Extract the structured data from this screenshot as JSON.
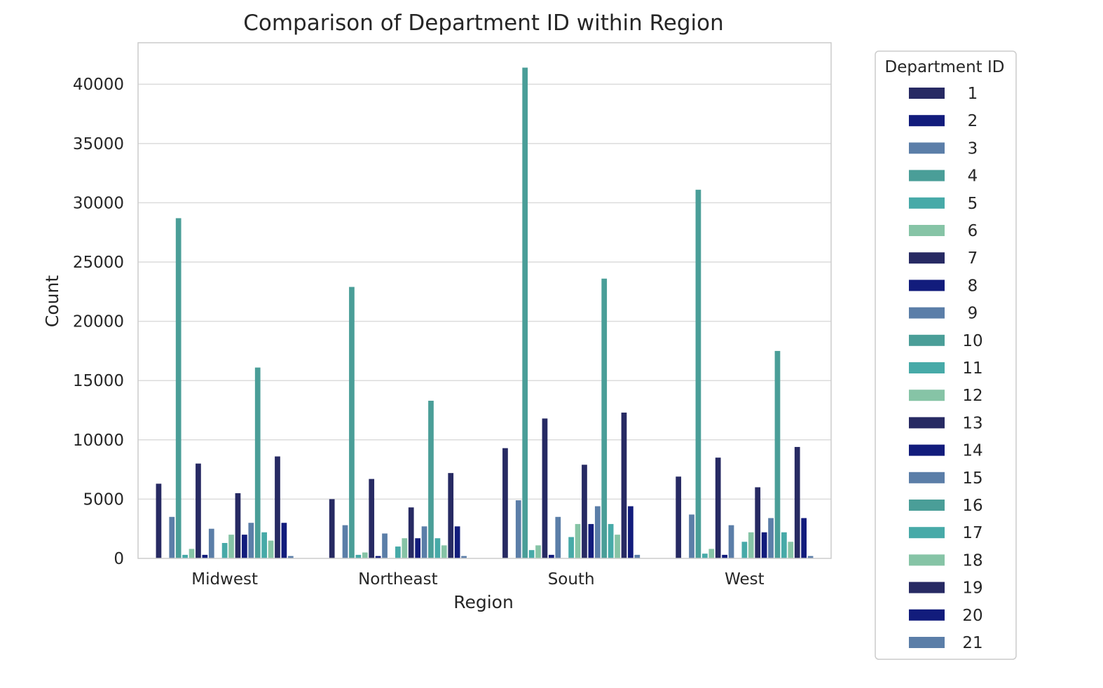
{
  "chart_data": {
    "type": "bar",
    "title": "Comparison of Department ID within Region",
    "xlabel": "Region",
    "ylabel": "Count",
    "categories": [
      "Midwest",
      "Northeast",
      "South",
      "West"
    ],
    "ylim": [
      0,
      43500
    ],
    "yticks": [
      0,
      5000,
      10000,
      15000,
      20000,
      25000,
      30000,
      35000,
      40000
    ],
    "grid": "horizontal",
    "legend": {
      "title": "Department ID",
      "placement": "outside-right"
    },
    "palette": [
      "#272a63",
      "#121c7c",
      "#5b7ea8",
      "#4a9e98",
      "#47aaa8",
      "#86c4a6"
    ],
    "series": [
      {
        "name": "1",
        "values": [
          6300,
          5000,
          9300,
          6900
        ]
      },
      {
        "name": "2",
        "values": [
          0,
          0,
          0,
          0
        ]
      },
      {
        "name": "3",
        "values": [
          3500,
          2800,
          4900,
          3700
        ]
      },
      {
        "name": "4",
        "values": [
          28700,
          22900,
          41400,
          31100
        ]
      },
      {
        "name": "5",
        "values": [
          300,
          300,
          700,
          400
        ]
      },
      {
        "name": "6",
        "values": [
          800,
          500,
          1100,
          800
        ]
      },
      {
        "name": "7",
        "values": [
          8000,
          6700,
          11800,
          8500
        ]
      },
      {
        "name": "8",
        "values": [
          300,
          200,
          300,
          300
        ]
      },
      {
        "name": "9",
        "values": [
          2500,
          2100,
          3500,
          2800
        ]
      },
      {
        "name": "10",
        "values": [
          0,
          0,
          0,
          0
        ]
      },
      {
        "name": "11",
        "values": [
          1300,
          1000,
          1800,
          1400
        ]
      },
      {
        "name": "12",
        "values": [
          2000,
          1700,
          2900,
          2200
        ]
      },
      {
        "name": "13",
        "values": [
          5500,
          4300,
          7900,
          6000
        ]
      },
      {
        "name": "14",
        "values": [
          2000,
          1700,
          2900,
          2200
        ]
      },
      {
        "name": "15",
        "values": [
          3000,
          2700,
          4400,
          3400
        ]
      },
      {
        "name": "16",
        "values": [
          16100,
          13300,
          23600,
          17500
        ]
      },
      {
        "name": "17",
        "values": [
          2200,
          1700,
          2900,
          2200
        ]
      },
      {
        "name": "18",
        "values": [
          1500,
          1100,
          2000,
          1400
        ]
      },
      {
        "name": "19",
        "values": [
          8600,
          7200,
          12300,
          9400
        ]
      },
      {
        "name": "20",
        "values": [
          3000,
          2700,
          4400,
          3400
        ]
      },
      {
        "name": "21",
        "values": [
          200,
          200,
          300,
          200
        ]
      }
    ]
  }
}
